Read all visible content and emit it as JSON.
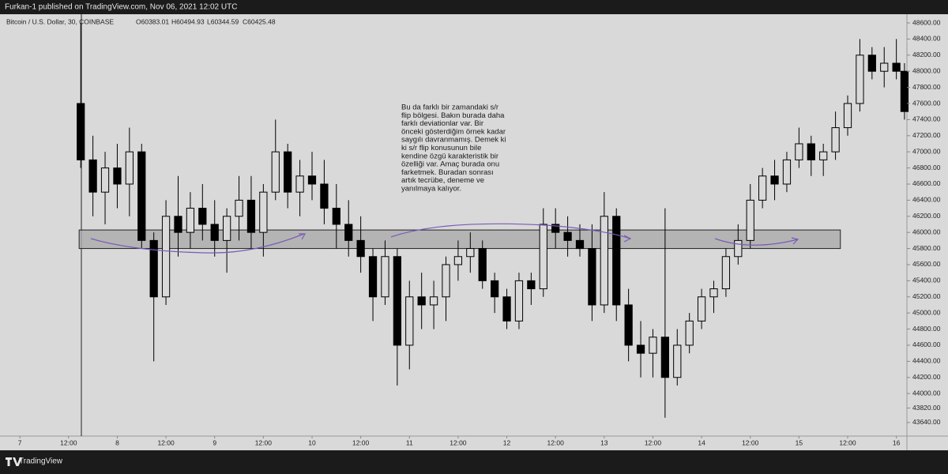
{
  "header": {
    "text": "Furkan-1 published on TradingView.com, Nov 06, 2021 12:02 UTC"
  },
  "footer": {
    "brand": "TradingView"
  },
  "chart_data": {
    "type": "candlestick",
    "symbol": "Bitcoin / U.S. Dollar, 30, COINBASE",
    "ohlc_labels": [
      "O60383.01",
      "H60494.93",
      "L60344.59",
      "C60425.48"
    ],
    "annotation": [
      "Bu da farklı bir zamandaki s/r",
      "flip bölgesi. Bakın burada daha",
      "farklı deviationlar var. Bir",
      "önceki gösterdiğim örnek kadar",
      "saygılı davranmamış. Demek ki",
      "ki s/r flip konusunun bile",
      "kendine özgü karakteristik bir",
      "özelliği var. Amaç burada onu",
      "farketmek. Buradan sonrası",
      "artık tecrübe, deneme ve",
      "yanılmaya kalıyor."
    ],
    "color": "#000000",
    "x": [
      15,
      18,
      21,
      24,
      27,
      30,
      33,
      36,
      39,
      42,
      45,
      48,
      51,
      54,
      57,
      60,
      63,
      66,
      69,
      72,
      75,
      78,
      81,
      84,
      87,
      90,
      93,
      96,
      99,
      102,
      105,
      108,
      111,
      114,
      117,
      120,
      123,
      126,
      129,
      132,
      135,
      138,
      141,
      144,
      147,
      150,
      153,
      156,
      159,
      162,
      165,
      168,
      171,
      174,
      177,
      180,
      183,
      186,
      189,
      192,
      195,
      198,
      201,
      204,
      207,
      210,
      213,
      216,
      218
    ],
    "open": [
      47600,
      46900,
      46500,
      46800,
      46600,
      47000,
      45900,
      45200,
      46200,
      46000,
      46300,
      46100,
      45900,
      46200,
      46400,
      46000,
      46500,
      47000,
      46500,
      46700,
      46600,
      46300,
      46100,
      45900,
      45700,
      45200,
      45700,
      44600,
      45200,
      45100,
      45200,
      45600,
      45700,
      45800,
      45400,
      45200,
      44900,
      45400,
      45300,
      46100,
      46000,
      45900,
      45800,
      45100,
      46200,
      45100,
      44600,
      44500,
      44700,
      44200,
      44600,
      44900,
      45200,
      45300,
      45700,
      45900,
      46400,
      46700,
      46600,
      46900,
      47100,
      46900,
      47000,
      47300,
      47600,
      48200,
      48000,
      48100,
      48000
    ],
    "high": [
      48600,
      47200,
      47000,
      47100,
      47300,
      47100,
      46000,
      46400,
      46700,
      46500,
      46600,
      46400,
      46300,
      46700,
      46700,
      46600,
      47400,
      47100,
      46900,
      47000,
      46900,
      46600,
      46400,
      46200,
      45800,
      45900,
      45800,
      45400,
      45500,
      45400,
      45700,
      45900,
      46000,
      45900,
      45500,
      45300,
      45500,
      45500,
      46300,
      46300,
      46200,
      46100,
      46100,
      46500,
      46300,
      45300,
      44900,
      44800,
      46300,
      44800,
      45000,
      45300,
      45400,
      45800,
      46100,
      46600,
      46800,
      46900,
      47000,
      47300,
      47200,
      47100,
      47500,
      47700,
      48400,
      48300,
      48300,
      48400,
      48100
    ],
    "low": [
      46800,
      46200,
      46100,
      46300,
      46200,
      45800,
      44400,
      45100,
      45700,
      45800,
      45900,
      45700,
      45500,
      45900,
      45800,
      45700,
      46400,
      46300,
      46200,
      46400,
      46100,
      45800,
      45700,
      45500,
      44900,
      45100,
      44100,
      44300,
      44800,
      44800,
      44900,
      45400,
      45500,
      45300,
      45000,
      44800,
      44800,
      45100,
      45200,
      45800,
      45700,
      45700,
      44900,
      45000,
      44900,
      44400,
      44200,
      44200,
      43700,
      44100,
      44500,
      44800,
      45000,
      45200,
      45600,
      45800,
      46300,
      46400,
      46500,
      46800,
      46700,
      46700,
      46900,
      47200,
      47500,
      47900,
      47800,
      47900,
      47400
    ],
    "close": [
      46900,
      46500,
      46800,
      46600,
      47000,
      45900,
      45200,
      46200,
      46000,
      46300,
      46100,
      45900,
      46200,
      46400,
      46000,
      46500,
      47000,
      46500,
      46700,
      46600,
      46300,
      46100,
      45900,
      45700,
      45200,
      45700,
      44600,
      45200,
      45100,
      45200,
      45600,
      45700,
      45800,
      45400,
      45200,
      44900,
      45400,
      45300,
      46100,
      46000,
      45900,
      45800,
      45100,
      46200,
      45100,
      44600,
      44500,
      44700,
      44200,
      44600,
      44900,
      45200,
      45300,
      45700,
      45900,
      46400,
      46700,
      46600,
      46900,
      47100,
      46900,
      47000,
      47300,
      47600,
      48200,
      48000,
      48100,
      48000,
      47500
    ],
    "zone": {
      "low": 45800,
      "high": 46030,
      "x": [
        14.6,
        202.2
      ],
      "color": "#aaaaaa"
    },
    "xlim": [
      -4.9,
      218.6
    ],
    "xticks": [
      {
        "value": 0,
        "label": "7"
      },
      {
        "value": 12,
        "label": "12:00"
      },
      {
        "value": 24,
        "label": "8"
      },
      {
        "value": 36,
        "label": "12:00"
      },
      {
        "value": 48,
        "label": "9"
      },
      {
        "value": 60,
        "label": "12:00"
      },
      {
        "value": 72,
        "label": "10"
      },
      {
        "value": 84,
        "label": "12:00"
      },
      {
        "value": 96,
        "label": "11"
      },
      {
        "value": 108,
        "label": "12:00"
      },
      {
        "value": 120,
        "label": "12"
      },
      {
        "value": 132,
        "label": "12:00"
      },
      {
        "value": 144,
        "label": "13"
      },
      {
        "value": 156,
        "label": "12:00"
      },
      {
        "value": 168,
        "label": "14"
      },
      {
        "value": 180,
        "label": "12:00"
      },
      {
        "value": 192,
        "label": "15"
      },
      {
        "value": 204,
        "label": "12:00"
      },
      {
        "value": 216,
        "label": "16"
      }
    ],
    "ylim": [
      43472,
      48708
    ],
    "yticks": [
      {
        "value": 48600,
        "label": "48600.00"
      },
      {
        "value": 48400,
        "label": "48400.00"
      },
      {
        "value": 48200,
        "label": "48200.00"
      },
      {
        "value": 48000,
        "label": "48000.00"
      },
      {
        "value": 47800,
        "label": "47800.00"
      },
      {
        "value": 47600,
        "label": "47600.00"
      },
      {
        "value": 47400,
        "label": "47400.00"
      },
      {
        "value": 47200,
        "label": "47200.00"
      },
      {
        "value": 47000,
        "label": "47000.00"
      },
      {
        "value": 46800,
        "label": "46800.00"
      },
      {
        "value": 46600,
        "label": "46600.00"
      },
      {
        "value": 46400,
        "label": "46400.00"
      },
      {
        "value": 46200,
        "label": "46200.00"
      },
      {
        "value": 46000,
        "label": "46000.00"
      },
      {
        "value": 45800,
        "label": "45800.00"
      },
      {
        "value": 45600,
        "label": "45600.00"
      },
      {
        "value": 45400,
        "label": "45400.00"
      },
      {
        "value": 45200,
        "label": "45200.00"
      },
      {
        "value": 45000,
        "label": "45000.00"
      },
      {
        "value": 44800,
        "label": "44800.00"
      },
      {
        "value": 44600,
        "label": "44600.00"
      },
      {
        "value": 44400,
        "label": "44400.00"
      },
      {
        "value": 44200,
        "label": "44200.00"
      },
      {
        "value": 44000,
        "label": "44000.00"
      },
      {
        "value": 43820,
        "label": "43820.00"
      },
      {
        "value": 43640,
        "label": "43640.00"
      }
    ]
  }
}
